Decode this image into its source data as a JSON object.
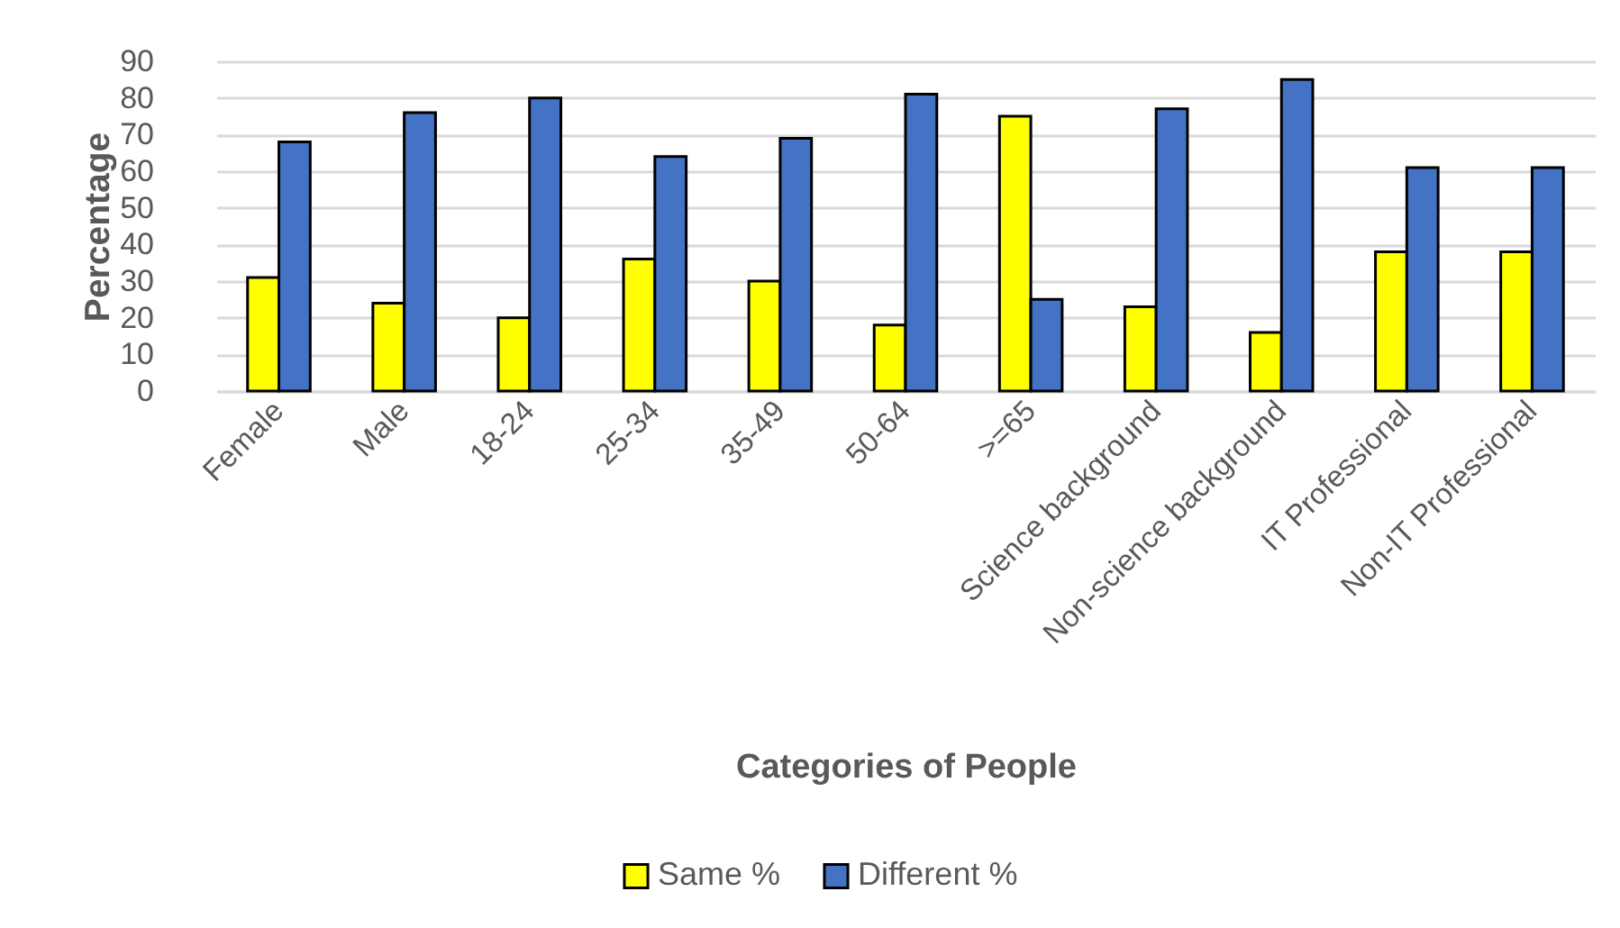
{
  "chart_data": {
    "type": "bar",
    "xlabel": "Categories of People",
    "ylabel": "Percentage",
    "categories": [
      "Female",
      "Male",
      "18-24",
      "25-34",
      "35-49",
      "50-64",
      ">=65",
      "Science background",
      "Non-science background",
      "IT Professional",
      "Non-IT Professional"
    ],
    "series": [
      {
        "name": "Same %",
        "color": "#ffff00",
        "values": [
          31,
          24,
          20,
          36,
          30,
          18,
          75,
          23,
          16,
          38,
          38
        ]
      },
      {
        "name": "Different %",
        "color": "#4472c4",
        "values": [
          68,
          76,
          80,
          64,
          69,
          81,
          25,
          77,
          85,
          61,
          61
        ]
      }
    ],
    "ylim": [
      0,
      90
    ],
    "yticks": [
      0,
      10,
      20,
      30,
      40,
      50,
      60,
      70,
      80,
      90
    ],
    "grid": "y",
    "legend": "bottom"
  }
}
